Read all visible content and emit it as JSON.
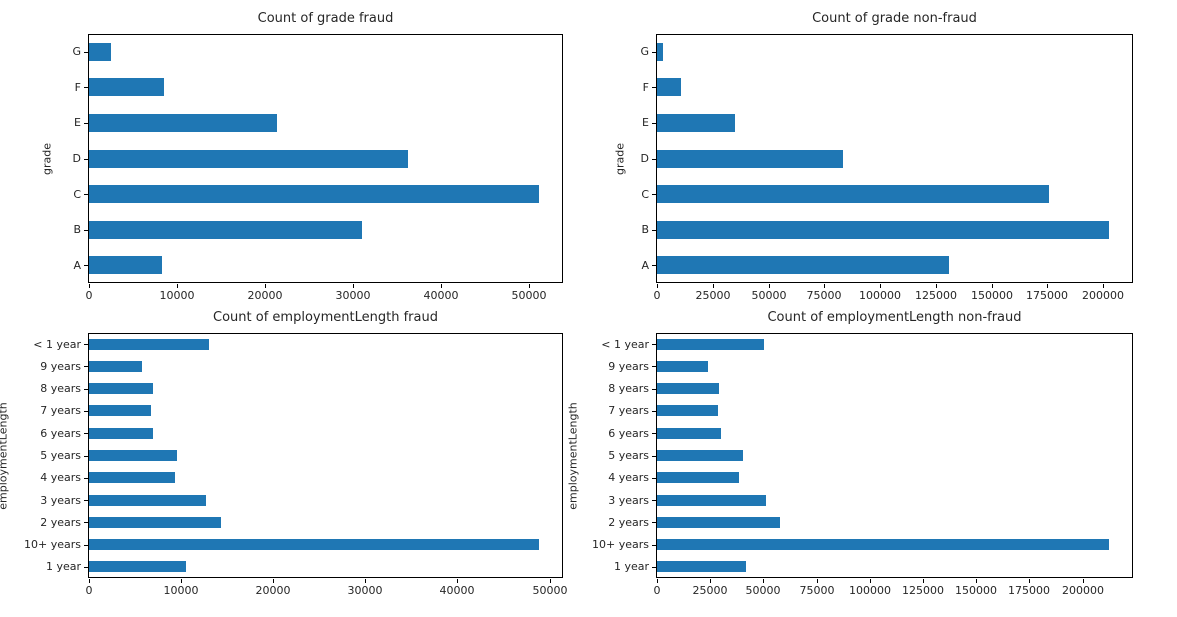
{
  "figure": {
    "background_color": "#ffffff",
    "spine_color": "#000000",
    "text_color": "#262626"
  },
  "chart_data": [
    {
      "type": "bar",
      "orientation": "horizontal",
      "title": "Count of grade fraud",
      "xlabel": "",
      "ylabel": "grade",
      "categories": [
        "G",
        "F",
        "E",
        "D",
        "C",
        "B",
        "A"
      ],
      "values": [
        2500,
        8500,
        21400,
        36300,
        51200,
        31100,
        8300
      ],
      "xlim": [
        0,
        53800
      ],
      "xticks": [
        0,
        10000,
        20000,
        30000,
        40000,
        50000
      ],
      "xtick_labels": [
        "0",
        "10000",
        "20000",
        "30000",
        "40000",
        "50000"
      ],
      "bar_color": "#1f77b4",
      "grid": false,
      "legend": "none"
    },
    {
      "type": "bar",
      "orientation": "horizontal",
      "title": "Count of grade non-fraud",
      "xlabel": "",
      "ylabel": "grade",
      "categories": [
        "G",
        "F",
        "E",
        "D",
        "C",
        "B",
        "A"
      ],
      "values": [
        2500,
        10700,
        34800,
        83300,
        175600,
        202400,
        131000
      ],
      "xlim": [
        0,
        212900
      ],
      "xticks": [
        0,
        25000,
        50000,
        75000,
        100000,
        125000,
        150000,
        175000,
        200000
      ],
      "xtick_labels": [
        "0",
        "25000",
        "50000",
        "75000",
        "100000",
        "125000",
        "150000",
        "175000",
        "200000"
      ],
      "bar_color": "#1f77b4",
      "grid": false,
      "legend": "none"
    },
    {
      "type": "bar",
      "orientation": "horizontal",
      "title": "Count of employmentLength fraud",
      "xlabel": "",
      "ylabel": "employmentLength",
      "categories": [
        "< 1 year",
        "9 years",
        "8 years",
        "7 years",
        "6 years",
        "5 years",
        "4 years",
        "3 years",
        "2 years",
        "10+ years",
        "1 year"
      ],
      "values": [
        13000,
        5800,
        7000,
        6700,
        7000,
        9600,
        9300,
        12700,
        14300,
        48900,
        10500
      ],
      "xlim": [
        0,
        51350
      ],
      "xticks": [
        0,
        10000,
        20000,
        30000,
        40000,
        50000
      ],
      "xtick_labels": [
        "0",
        "10000",
        "20000",
        "30000",
        "40000",
        "50000"
      ],
      "bar_color": "#1f77b4",
      "grid": false,
      "legend": "none"
    },
    {
      "type": "bar",
      "orientation": "horizontal",
      "title": "Count of employmentLength non-fraud",
      "xlabel": "",
      "ylabel": "employmentLength",
      "categories": [
        "< 1 year",
        "9 years",
        "8 years",
        "7 years",
        "6 years",
        "5 years",
        "4 years",
        "3 years",
        "2 years",
        "10+ years",
        "1 year"
      ],
      "values": [
        50300,
        24000,
        29200,
        28600,
        30300,
        40500,
        38600,
        51000,
        57800,
        212600,
        41600
      ],
      "xlim": [
        0,
        223250
      ],
      "xticks": [
        0,
        25000,
        50000,
        75000,
        100000,
        125000,
        150000,
        175000,
        200000
      ],
      "xtick_labels": [
        "0",
        "25000",
        "50000",
        "75000",
        "100000",
        "125000",
        "150000",
        "175000",
        "200000"
      ],
      "bar_color": "#1f77b4",
      "grid": false,
      "legend": "none"
    }
  ]
}
